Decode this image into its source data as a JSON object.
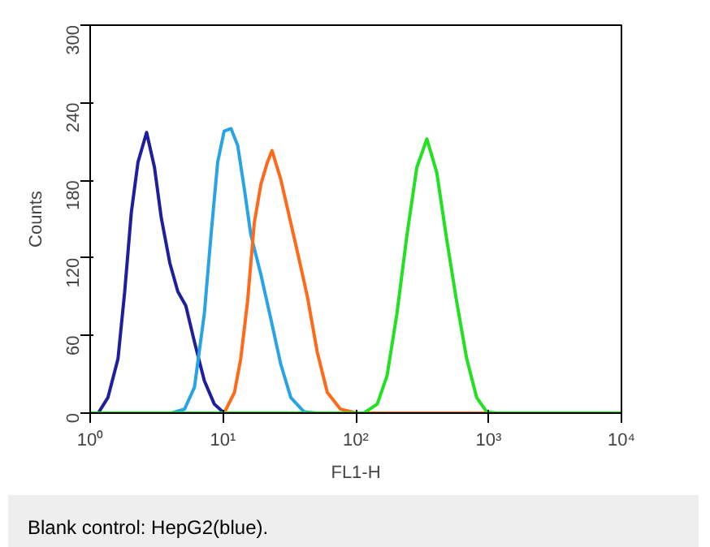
{
  "chart_data": {
    "type": "line",
    "xlabel": "FL1-H",
    "ylabel": "Counts",
    "log": "x",
    "grid": false,
    "xlim": [
      1,
      10000
    ],
    "xticks": [
      {
        "value": 1,
        "label": "10⁰"
      },
      {
        "value": 10,
        "label": "10¹"
      },
      {
        "value": 100,
        "label": "10²"
      },
      {
        "value": 1000,
        "label": "10³"
      },
      {
        "value": 10000,
        "label": "10⁴"
      }
    ],
    "ylim": [
      0,
      300
    ],
    "yticks": [
      0,
      60,
      120,
      180,
      240,
      300
    ],
    "series": [
      {
        "color": "#1f1f9e",
        "x": [
          1,
          1.15,
          1.36,
          1.62,
          1.82,
          2.04,
          2.29,
          2.66,
          3.05,
          3.43,
          3.98,
          4.57,
          5.25,
          6.1,
          7.24,
          8.6,
          10.2,
          10000
        ],
        "values": [
          0,
          0,
          12,
          42,
          94,
          155,
          194,
          217,
          190,
          151,
          116,
          94,
          83,
          55,
          25,
          7,
          0,
          0
        ]
      },
      {
        "color": "#29a3e8",
        "x": [
          1,
          4.07,
          5.13,
          6.1,
          7.24,
          8.13,
          9.12,
          10.2,
          11.5,
          12.9,
          14.5,
          16.2,
          19.3,
          22.9,
          27.2,
          32.4,
          40.7,
          51.3,
          10000
        ],
        "values": [
          0,
          0,
          3,
          20,
          77,
          138,
          194,
          218,
          220,
          207,
          173,
          138,
          107,
          73,
          38,
          12,
          1,
          0,
          0
        ]
      },
      {
        "color": "#ff6a1a",
        "x": [
          1,
          10.2,
          12.2,
          13.6,
          15.3,
          17.2,
          19.3,
          21.6,
          23.4,
          27.2,
          32.4,
          37.2,
          43.2,
          51.3,
          61,
          76.7,
          102,
          10000
        ],
        "values": [
          0,
          0,
          16,
          42,
          86,
          147,
          177,
          194,
          203,
          181,
          147,
          120,
          90,
          47,
          16,
          3,
          0,
          0
        ]
      },
      {
        "color": "#22e022",
        "x": [
          1,
          115,
          145,
          172,
          204,
          243,
          288,
          343,
          407,
          484,
          575,
          684,
          813,
          966,
          1148,
          10000
        ],
        "values": [
          0,
          0,
          7,
          29,
          77,
          138,
          190,
          212,
          186,
          134,
          86,
          42,
          12,
          1,
          0,
          0
        ]
      }
    ],
    "annotations": [
      "Blank control: HepG2(blue)."
    ]
  }
}
